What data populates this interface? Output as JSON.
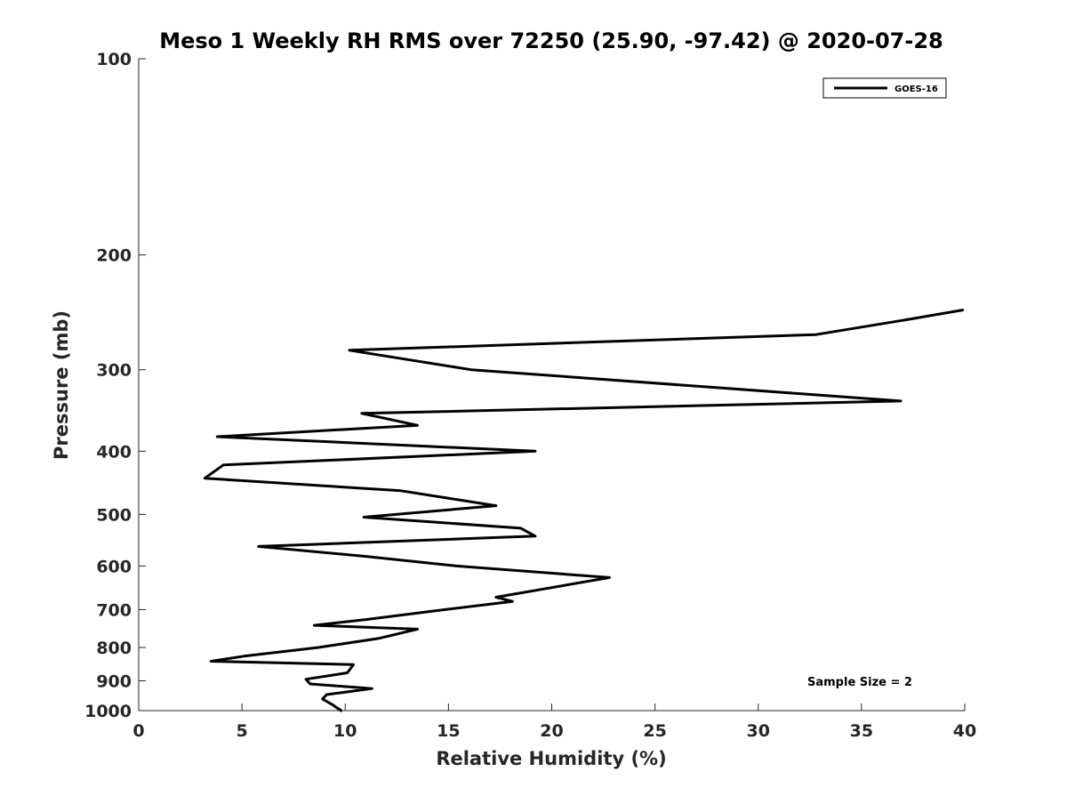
{
  "chart_data": {
    "type": "line",
    "title": "Meso 1 Weekly RH RMS over 72250 (25.90, -97.42) @ 2020-07-28",
    "xlabel": "Relative Humidity (%)",
    "ylabel": "Pressure (mb)",
    "xlim": [
      0,
      40
    ],
    "ylim": [
      100,
      1000
    ],
    "yscale": "log",
    "y_reversed": true,
    "grid": false,
    "xticks": [
      0,
      5,
      10,
      15,
      20,
      25,
      30,
      35,
      40
    ],
    "xtick_labels": [
      "0",
      "5",
      "10",
      "15",
      "20",
      "25",
      "30",
      "35",
      "40"
    ],
    "yticks": [
      100,
      200,
      300,
      400,
      500,
      600,
      700,
      800,
      900,
      1000
    ],
    "ytick_labels": [
      "100",
      "200",
      "300",
      "400",
      "500",
      "600",
      "700",
      "800",
      "900",
      "1000"
    ],
    "legend_position": "top-right",
    "series": [
      {
        "name": "GOES-16",
        "color": "#000000",
        "points": [
          {
            "x": 9.8,
            "y": 1000
          },
          {
            "x": 9.4,
            "y": 980
          },
          {
            "x": 8.9,
            "y": 960
          },
          {
            "x": 9.1,
            "y": 945
          },
          {
            "x": 11.3,
            "y": 925
          },
          {
            "x": 8.3,
            "y": 910
          },
          {
            "x": 8.1,
            "y": 895
          },
          {
            "x": 10.1,
            "y": 875
          },
          {
            "x": 10.4,
            "y": 850
          },
          {
            "x": 3.5,
            "y": 840
          },
          {
            "x": 5.1,
            "y": 825
          },
          {
            "x": 8.7,
            "y": 800
          },
          {
            "x": 11.6,
            "y": 775
          },
          {
            "x": 13.5,
            "y": 750
          },
          {
            "x": 8.5,
            "y": 740
          },
          {
            "x": 11.0,
            "y": 725
          },
          {
            "x": 14.8,
            "y": 700
          },
          {
            "x": 18.1,
            "y": 680
          },
          {
            "x": 17.3,
            "y": 670
          },
          {
            "x": 22.8,
            "y": 625
          },
          {
            "x": 15.4,
            "y": 600
          },
          {
            "x": 11.0,
            "y": 580
          },
          {
            "x": 5.8,
            "y": 560
          },
          {
            "x": 19.2,
            "y": 540
          },
          {
            "x": 18.5,
            "y": 525
          },
          {
            "x": 10.9,
            "y": 505
          },
          {
            "x": 17.3,
            "y": 485
          },
          {
            "x": 12.7,
            "y": 460
          },
          {
            "x": 3.2,
            "y": 440
          },
          {
            "x": 4.1,
            "y": 420
          },
          {
            "x": 19.2,
            "y": 400
          },
          {
            "x": 3.8,
            "y": 380
          },
          {
            "x": 13.5,
            "y": 365
          },
          {
            "x": 10.8,
            "y": 350
          },
          {
            "x": 36.9,
            "y": 335
          },
          {
            "x": 16.1,
            "y": 300
          },
          {
            "x": 10.2,
            "y": 280
          },
          {
            "x": 32.8,
            "y": 265
          },
          {
            "x": 37.0,
            "y": 252
          },
          {
            "x": 39.9,
            "y": 243
          }
        ]
      }
    ],
    "annotations": [
      "Sample Size = 2"
    ]
  }
}
